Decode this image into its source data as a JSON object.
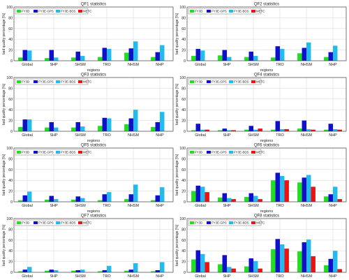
{
  "series_colors": [
    "#22dd22",
    "#1010cc",
    "#22bbee",
    "#ee1111"
  ],
  "chart_data": [
    {
      "type": "bar",
      "title": "QF1 statistics",
      "xlabel": "regions",
      "ylabel": "bad quality percentage [%]",
      "ylim": [
        0,
        100
      ],
      "yticks": [
        0,
        20,
        40,
        60,
        80,
        100
      ],
      "grid": true,
      "legend": "top-left",
      "categories": [
        "Global",
        "SHP",
        "SHSM",
        "TRO",
        "NHSM",
        "NHP"
      ],
      "series": [
        {
          "name": "FY3D",
          "values": [
            6,
            5,
            6,
            7,
            15,
            7
          ]
        },
        {
          "name": "FY3E-GPS",
          "values": [
            20,
            20,
            17,
            24,
            23,
            16
          ]
        },
        {
          "name": "FY3E-BDS",
          "values": [
            19,
            6,
            9,
            22,
            36,
            29
          ]
        },
        {
          "name": "METC",
          "values": [
            0,
            0,
            0,
            0,
            0,
            0
          ]
        }
      ]
    },
    {
      "type": "bar",
      "title": "QF2 statistics",
      "xlabel": "regions",
      "ylabel": "bad quality percentage [%]",
      "ylim": [
        0,
        100
      ],
      "yticks": [
        0,
        20,
        40,
        60,
        80,
        100
      ],
      "grid": true,
      "legend": "top-left",
      "categories": [
        "Global",
        "SHP",
        "SHSM",
        "TRO",
        "NHSM",
        "NHP"
      ],
      "series": [
        {
          "name": "FY3D",
          "values": [
            9,
            10,
            7,
            6,
            14,
            7
          ]
        },
        {
          "name": "FY3E-GPS",
          "values": [
            22,
            20,
            17,
            27,
            24,
            16
          ]
        },
        {
          "name": "FY3E-BDS",
          "values": [
            19,
            7,
            9,
            22,
            34,
            28
          ]
        },
        {
          "name": "METC",
          "values": [
            0,
            0,
            0,
            0,
            0,
            0
          ]
        }
      ]
    },
    {
      "type": "bar",
      "title": "QF3 statistics",
      "xlabel": "regions",
      "ylabel": "bad quality percentage [%]",
      "ylim": [
        0,
        100
      ],
      "yticks": [
        0,
        20,
        40,
        60,
        80,
        100
      ],
      "grid": true,
      "legend": "top-left",
      "categories": [
        "Global",
        "SHP",
        "SHSM",
        "TRO",
        "NHSM",
        "NHP"
      ],
      "series": [
        {
          "name": "FY3D",
          "values": [
            8,
            7,
            7,
            10,
            13,
            8
          ]
        },
        {
          "name": "FY3E-GPS",
          "values": [
            22,
            17,
            17,
            25,
            24,
            17
          ]
        },
        {
          "name": "FY3E-BDS",
          "values": [
            22,
            7,
            9,
            24,
            40,
            36
          ]
        },
        {
          "name": "METC",
          "values": [
            0,
            0,
            0,
            0,
            0,
            0
          ]
        }
      ]
    },
    {
      "type": "bar",
      "title": "QF4 statistics",
      "xlabel": "regions",
      "ylabel": "bad quality percentage [%]",
      "ylim": [
        0,
        100
      ],
      "yticks": [
        0,
        20,
        40,
        60,
        80,
        100
      ],
      "grid": true,
      "legend": "top-left",
      "categories": [
        "Global",
        "SHP",
        "SHSM",
        "TRO",
        "NHSM",
        "NHP"
      ],
      "series": [
        {
          "name": "FY3D",
          "values": [
            2,
            2,
            3,
            3,
            5,
            3
          ]
        },
        {
          "name": "FY3E-GPS",
          "values": [
            14,
            5,
            10,
            19,
            20,
            14
          ]
        },
        {
          "name": "FY3E-BDS",
          "values": [
            3,
            2,
            3,
            4,
            4,
            4
          ]
        },
        {
          "name": "METC",
          "values": [
            3,
            2,
            5,
            4,
            3,
            3
          ]
        }
      ]
    },
    {
      "type": "bar",
      "title": "QF5 statistics",
      "xlabel": "regions",
      "ylabel": "bad quality percentage [%]",
      "ylim": [
        0,
        100
      ],
      "yticks": [
        0,
        20,
        40,
        60,
        80,
        100
      ],
      "grid": true,
      "legend": "top-left",
      "categories": [
        "Global",
        "SHP",
        "SHSM",
        "TRO",
        "NHSM",
        "NHP"
      ],
      "series": [
        {
          "name": "FY3D",
          "values": [
            3,
            4,
            4,
            3,
            5,
            3
          ]
        },
        {
          "name": "FY3E-GPS",
          "values": [
            12,
            11,
            10,
            14,
            14,
            12
          ]
        },
        {
          "name": "FY3E-BDS",
          "values": [
            19,
            5,
            7,
            18,
            32,
            27
          ]
        },
        {
          "name": "METC",
          "values": [
            0,
            0,
            0,
            0,
            0,
            0
          ]
        }
      ]
    },
    {
      "type": "bar",
      "title": "QF6 statistics",
      "xlabel": "regions",
      "ylabel": "bad quality percentage [%]",
      "ylim": [
        0,
        100
      ],
      "yticks": [
        0,
        20,
        40,
        60,
        80,
        100
      ],
      "grid": true,
      "legend": "top-left",
      "categories": [
        "Global",
        "SHP",
        "SHSM",
        "TRO",
        "NHSM",
        "NHP"
      ],
      "series": [
        {
          "name": "FY3D",
          "values": [
            20,
            8,
            9,
            40,
            36,
            10
          ]
        },
        {
          "name": "FY3E-GPS",
          "values": [
            30,
            16,
            16,
            54,
            45,
            14
          ]
        },
        {
          "name": "FY3E-BDS",
          "values": [
            28,
            7,
            11,
            48,
            50,
            28
          ]
        },
        {
          "name": "METC",
          "values": [
            18,
            5,
            5,
            40,
            28,
            5
          ]
        }
      ]
    },
    {
      "type": "bar",
      "title": "QF7 statistics",
      "xlabel": "regions",
      "ylabel": "bad quality percentage [%]",
      "ylim": [
        0,
        100
      ],
      "yticks": [
        0,
        20,
        40,
        60,
        80,
        100
      ],
      "grid": true,
      "legend": "top-left",
      "categories": [
        "Global",
        "SHP",
        "SHSM",
        "TRO",
        "NHSM",
        "NHP"
      ],
      "series": [
        {
          "name": "FY3D",
          "values": [
            2,
            3,
            3,
            2,
            3,
            2
          ]
        },
        {
          "name": "FY3E-GPS",
          "values": [
            5,
            5,
            4,
            4,
            5,
            4
          ]
        },
        {
          "name": "FY3E-BDS",
          "values": [
            10,
            4,
            5,
            12,
            17,
            19
          ]
        },
        {
          "name": "METC",
          "values": [
            0,
            0,
            0,
            0,
            0,
            0
          ]
        }
      ]
    },
    {
      "type": "bar",
      "title": "QF8 statistics",
      "xlabel": "regions",
      "ylabel": "bad quality percentage [%]",
      "ylim": [
        0,
        100
      ],
      "yticks": [
        0,
        20,
        40,
        60,
        80,
        100
      ],
      "grid": true,
      "legend": "top-left",
      "categories": [
        "Global",
        "SHP",
        "SHSM",
        "TRO",
        "NHSM",
        "NHP"
      ],
      "series": [
        {
          "name": "FY3D",
          "values": [
            24,
            15,
            11,
            43,
            39,
            13
          ]
        },
        {
          "name": "FY3E-GPS",
          "values": [
            41,
            32,
            26,
            62,
            56,
            25
          ]
        },
        {
          "name": "FY3E-BDS",
          "values": [
            34,
            10,
            21,
            52,
            61,
            40
          ]
        },
        {
          "name": "METC",
          "values": [
            19,
            7,
            7,
            44,
            30,
            6
          ]
        }
      ]
    }
  ]
}
